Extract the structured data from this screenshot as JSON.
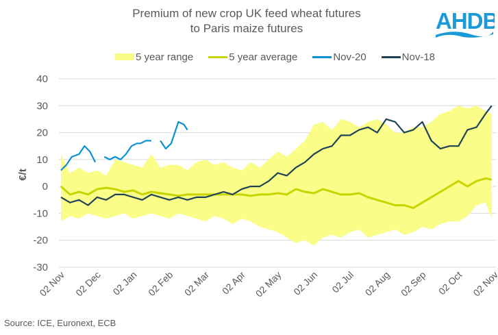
{
  "chart_data": {
    "type": "area",
    "title_line1": "Premium of new crop UK feed wheat futures",
    "title_line2": "to Paris maize futures",
    "ylabel": "€/t",
    "xlabel": "",
    "ylim": [
      -30,
      40
    ],
    "yticks": [
      40,
      30,
      20,
      10,
      0,
      -10,
      -20,
      -30
    ],
    "xticks": [
      "02 Nov",
      "02 Dec",
      "02 Jan",
      "02 Feb",
      "02 Mar",
      "02 Apr",
      "02 May",
      "02 Jun",
      "02 Jul",
      "02 Aug",
      "02 Sep",
      "02 Oct",
      "02 Nov"
    ],
    "grid": true,
    "legend_position": "top",
    "x_unit": "months since 02 Nov",
    "series": [
      {
        "name": "5 year range",
        "kind": "band",
        "color": "#fafd88",
        "x": [
          0,
          0.25,
          0.5,
          0.75,
          1,
          1.25,
          1.5,
          1.75,
          2,
          2.25,
          2.5,
          2.75,
          3,
          3.25,
          3.5,
          3.75,
          4,
          4.25,
          4.5,
          4.75,
          5,
          5.25,
          5.5,
          5.75,
          6,
          6.25,
          6.5,
          6.75,
          7,
          7.25,
          7.5,
          7.75,
          8,
          8.25,
          8.5,
          8.75,
          9,
          9.25,
          9.5,
          9.75,
          10,
          10.25,
          10.5,
          10.75,
          11,
          11.25,
          11.5,
          11.75,
          11.92
        ],
        "upper": [
          12,
          5,
          7,
          5,
          6,
          4,
          10,
          9,
          8,
          7,
          12,
          7,
          8,
          8,
          6,
          9,
          10,
          8,
          9,
          7,
          6,
          9,
          7,
          10,
          13,
          11,
          14,
          17,
          23,
          24,
          21,
          25,
          24,
          22,
          24,
          25,
          23,
          20,
          20,
          22,
          22,
          24,
          27,
          28,
          30,
          29,
          30,
          28,
          27
        ],
        "lower": [
          -13,
          -11,
          -12,
          -10,
          -11,
          -12,
          -11,
          -10,
          -12,
          -11,
          -10,
          -11,
          -12,
          -10,
          -11,
          -12,
          -13,
          -11,
          -12,
          -14,
          -12,
          -13,
          -15,
          -16,
          -17,
          -19,
          -21,
          -20,
          -22,
          -19,
          -18,
          -19,
          -17,
          -16,
          -19,
          -18,
          -17,
          -16,
          -18,
          -17,
          -15,
          -16,
          -14,
          -13,
          -13,
          -11,
          -7,
          -6,
          -12
        ]
      },
      {
        "name": "5 year average",
        "kind": "line",
        "color": "#c8d400",
        "x": [
          0,
          0.25,
          0.5,
          0.75,
          1,
          1.25,
          1.5,
          1.75,
          2,
          2.25,
          2.5,
          2.75,
          3,
          3.25,
          3.5,
          3.75,
          4,
          4.25,
          4.5,
          4.75,
          5,
          5.25,
          5.5,
          5.75,
          6,
          6.25,
          6.5,
          6.75,
          7,
          7.25,
          7.5,
          7.75,
          8,
          8.25,
          8.5,
          8.75,
          9,
          9.25,
          9.5,
          9.75,
          10,
          10.25,
          10.5,
          10.75,
          11,
          11.25,
          11.5,
          11.75,
          11.92
        ],
        "values": [
          0,
          -3,
          -2,
          -3,
          -1,
          -0.5,
          -1,
          -2,
          -1.5,
          -3,
          -2,
          -2.5,
          -3,
          -3.5,
          -3,
          -3,
          -3,
          -3,
          -3,
          -3,
          -3,
          -3.5,
          -3,
          -3,
          -2.5,
          -3,
          -1,
          -2,
          -2.5,
          -1,
          -2,
          -3,
          -3,
          -2.5,
          -4,
          -5,
          -6,
          -7,
          -7,
          -8,
          -6,
          -4,
          -2,
          0,
          2,
          0,
          2,
          3,
          2.5
        ]
      },
      {
        "name": "Nov-20",
        "kind": "line",
        "color": "#0a8fd0",
        "x": [
          0,
          0.15,
          0.3,
          0.5,
          0.65,
          0.8,
          0.95,
          1.1,
          1.2,
          1.35,
          1.5,
          1.65,
          1.8,
          1.95,
          2.1,
          2.2,
          2.35,
          2.5,
          2.65,
          2.75,
          2.9,
          3.05,
          3.15,
          3.25,
          3.4,
          3.5
        ],
        "values": [
          6,
          8,
          11,
          12,
          15,
          13,
          9,
          null,
          11,
          10,
          11,
          10,
          12,
          15,
          16,
          16,
          17,
          17,
          null,
          17,
          14,
          16,
          20,
          24,
          23,
          21
        ]
      },
      {
        "name": "Nov-18",
        "kind": "line",
        "color": "#1d4355",
        "x": [
          0,
          0.25,
          0.5,
          0.75,
          1,
          1.25,
          1.5,
          1.75,
          2,
          2.25,
          2.5,
          2.75,
          3,
          3.25,
          3.5,
          3.75,
          4,
          4.25,
          4.5,
          4.75,
          5,
          5.25,
          5.5,
          5.75,
          6,
          6.25,
          6.5,
          6.75,
          7,
          7.25,
          7.5,
          7.75,
          8,
          8.25,
          8.5,
          8.75,
          9,
          9.25,
          9.5,
          9.75,
          10,
          10.25,
          10.5,
          10.75,
          11,
          11.25,
          11.5,
          11.75,
          11.92
        ],
        "values": [
          -4,
          -6,
          -5,
          -7,
          -4,
          -5,
          -3,
          -3,
          -4,
          -5,
          -3,
          -4,
          -5,
          -4,
          -5,
          -4,
          -4,
          -3,
          -2,
          -3,
          -1,
          0,
          0,
          2,
          5,
          4,
          7,
          9,
          12,
          14,
          15,
          19,
          19,
          21,
          22,
          20,
          25,
          24,
          20,
          21,
          24,
          17,
          14,
          15,
          15,
          21,
          22,
          27,
          30
        ],
        "values_tail_note": ""
      }
    ]
  },
  "legend": {
    "items": [
      "5 year range",
      "5 year average",
      "Nov-20",
      "Nov-18"
    ]
  },
  "logo": {
    "text": "AHDB"
  },
  "source": "Source: ICE, Euronext, ECB"
}
